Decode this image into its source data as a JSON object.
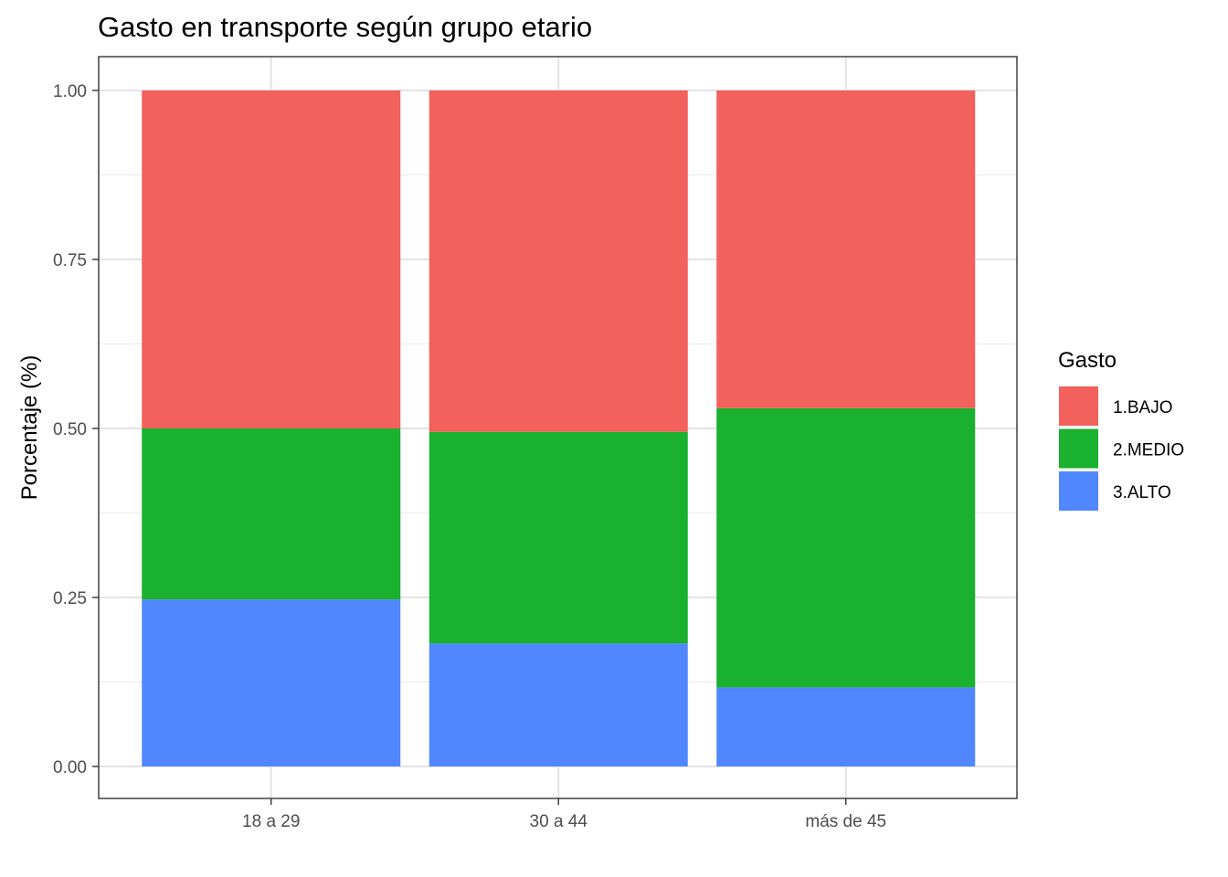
{
  "chart_data": {
    "type": "bar",
    "stacked": true,
    "title": "Gasto en transporte según grupo etario",
    "xlabel": "",
    "ylabel": "Porcentaje (%)",
    "ylim": [
      0,
      1
    ],
    "yticks": [
      "0.00",
      "0.25",
      "0.50",
      "0.75",
      "1.00"
    ],
    "grid": true,
    "legend_position": "right",
    "legend_title": "Gasto",
    "categories": [
      "18 a 29",
      "30 a 44",
      "más de 45"
    ],
    "series": [
      {
        "name": "1.BAJO",
        "color": "#F2615B",
        "values": [
          0.5,
          0.505,
          0.47
        ]
      },
      {
        "name": "2.MEDIO",
        "color": "#1AB12F",
        "values": [
          0.253,
          0.313,
          0.413
        ]
      },
      {
        "name": "3.ALTO",
        "color": "#5087FF",
        "values": [
          0.247,
          0.182,
          0.117
        ]
      }
    ]
  }
}
